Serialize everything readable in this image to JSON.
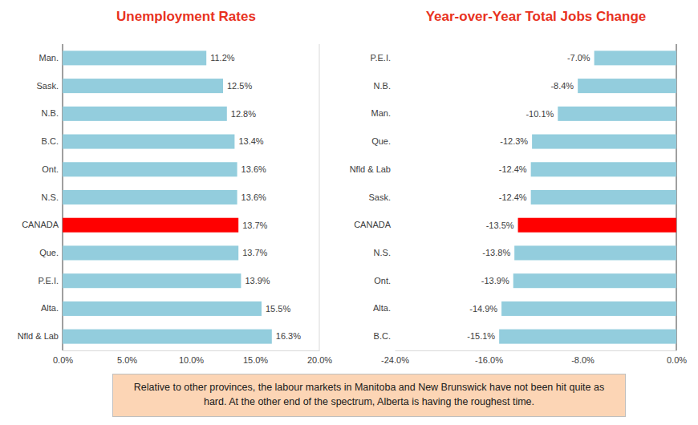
{
  "chart_data": [
    {
      "type": "bar",
      "title": "Unemployment Rates",
      "orientation": "horizontal",
      "categories": [
        "Man.",
        "Sask.",
        "N.B.",
        "B.C.",
        "Ont.",
        "N.S.",
        "CANADA",
        "Que.",
        "P.E.I.",
        "Alta.",
        "Nfld & Lab"
      ],
      "values": [
        11.2,
        12.5,
        12.8,
        13.4,
        13.6,
        13.6,
        13.7,
        13.7,
        13.9,
        15.5,
        16.3
      ],
      "value_labels": [
        "11.2%",
        "12.5%",
        "12.8%",
        "13.4%",
        "13.6%",
        "13.6%",
        "13.7%",
        "13.7%",
        "13.9%",
        "15.5%",
        "16.3%"
      ],
      "colors": [
        "#93cddd",
        "#93cddd",
        "#93cddd",
        "#93cddd",
        "#93cddd",
        "#93cddd",
        "#ff0000",
        "#93cddd",
        "#93cddd",
        "#93cddd",
        "#93cddd"
      ],
      "xlim": [
        0,
        20
      ],
      "xticks": [
        {
          "value": 0,
          "label": "0.0%"
        },
        {
          "value": 5,
          "label": "5.0%"
        },
        {
          "value": 10,
          "label": "10.0%"
        },
        {
          "value": 15,
          "label": "15.0%"
        },
        {
          "value": 20,
          "label": "20.0%"
        }
      ],
      "grid": false,
      "data_labels": true
    },
    {
      "type": "bar",
      "title": "Year-over-Year Total Jobs Change",
      "orientation": "horizontal",
      "categories": [
        "P.E.I.",
        "N.B.",
        "Man.",
        "Que.",
        "Nfld & Lab",
        "Sask.",
        "CANADA",
        "N.S.",
        "Ont.",
        "Alta.",
        "B.C."
      ],
      "values": [
        -7.0,
        -8.4,
        -10.1,
        -12.3,
        -12.4,
        -12.4,
        -13.5,
        -13.8,
        -13.9,
        -14.9,
        -15.1
      ],
      "value_labels": [
        "-7.0%",
        "-8.4%",
        "-10.1%",
        "-12.3%",
        "-12.4%",
        "-12.4%",
        "-13.5%",
        "-13.8%",
        "-13.9%",
        "-14.9%",
        "-15.1%"
      ],
      "colors": [
        "#93cddd",
        "#93cddd",
        "#93cddd",
        "#93cddd",
        "#93cddd",
        "#93cddd",
        "#ff0000",
        "#93cddd",
        "#93cddd",
        "#93cddd",
        "#93cddd"
      ],
      "xlim": [
        -24,
        0
      ],
      "xticks": [
        {
          "value": -24,
          "label": "-24.0%"
        },
        {
          "value": -16,
          "label": "-16.0%"
        },
        {
          "value": -8,
          "label": "-8.0%"
        },
        {
          "value": 0,
          "label": "0.0%"
        }
      ],
      "grid": false,
      "data_labels": true
    }
  ],
  "note": "Relative to other provinces, the labour markets in Manitoba and New Brunswick have not been hit quite as hard. At the other end of the spectrum, Alberta is having the roughest time."
}
